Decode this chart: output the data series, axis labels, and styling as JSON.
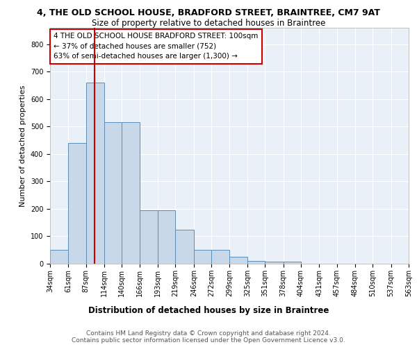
{
  "title1": "4, THE OLD SCHOOL HOUSE, BRADFORD STREET, BRAINTREE, CM7 9AT",
  "title2": "Size of property relative to detached houses in Braintree",
  "xlabel": "Distribution of detached houses by size in Braintree",
  "ylabel": "Number of detached properties",
  "bin_edges": [
    34,
    61,
    87,
    114,
    140,
    166,
    193,
    219,
    246,
    272,
    299,
    325,
    351,
    378,
    404,
    431,
    457,
    484,
    510,
    537,
    563
  ],
  "bar_heights": [
    50,
    440,
    660,
    515,
    515,
    195,
    195,
    125,
    50,
    50,
    25,
    10,
    8,
    8,
    0,
    0,
    0,
    0,
    0,
    0
  ],
  "bar_color": "#c8d8e8",
  "bar_edge_color": "#5b8db8",
  "red_line_x": 100,
  "ylim": [
    0,
    860
  ],
  "yticks": [
    0,
    100,
    200,
    300,
    400,
    500,
    600,
    700,
    800
  ],
  "annotation_text": "4 THE OLD SCHOOL HOUSE BRADFORD STREET: 100sqm\n← 37% of detached houses are smaller (752)\n63% of semi-detached houses are larger (1,300) →",
  "annotation_box_color": "#ffffff",
  "annotation_box_edge": "#cc0000",
  "footer1": "Contains HM Land Registry data © Crown copyright and database right 2024.",
  "footer2": "Contains public sector information licensed under the Open Government Licence v3.0.",
  "bg_color": "#eaf0f8",
  "grid_color": "#ffffff",
  "title1_fontsize": 9,
  "title2_fontsize": 8.5,
  "xlabel_fontsize": 8.5,
  "ylabel_fontsize": 8,
  "tick_fontsize": 7,
  "annotation_fontsize": 7.5,
  "footer_fontsize": 6.5
}
